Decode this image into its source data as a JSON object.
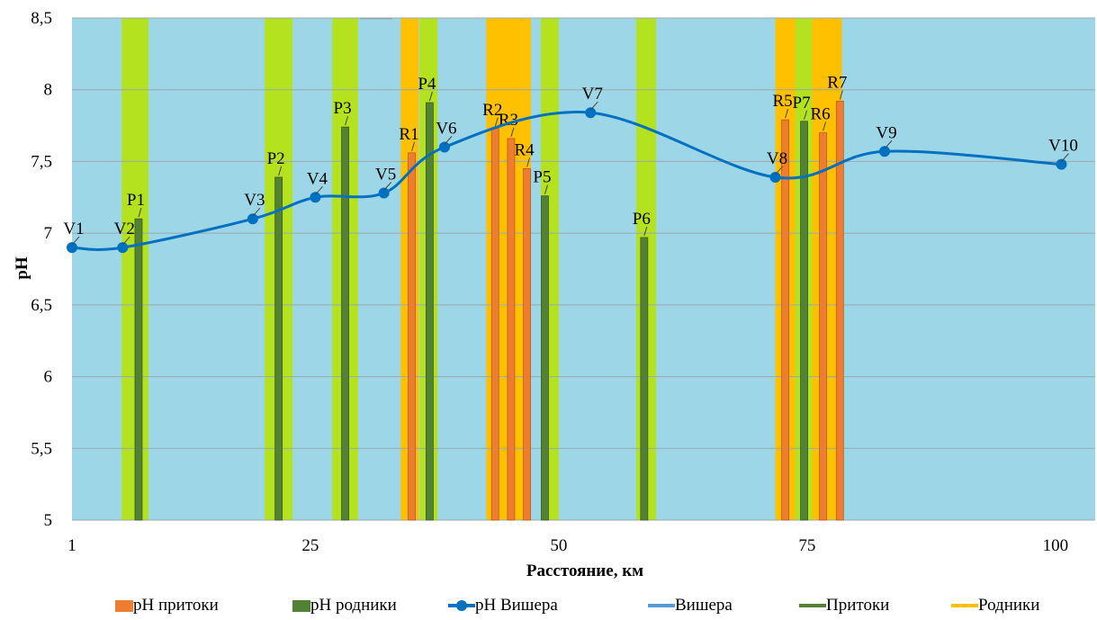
{
  "chart_data": {
    "type": "bar",
    "xlabel": "Расстояние, км",
    "ylabel": "pH",
    "ylim": [
      5,
      8.5
    ],
    "xlim": [
      1,
      104
    ],
    "x_ticks": [
      "1",
      "25",
      "50",
      "75",
      "100"
    ],
    "y_ticks": [
      "5",
      "5,5",
      "6",
      "6,5",
      "7",
      "7,5",
      "8",
      "8,5"
    ],
    "grid": true,
    "legend_position": "bottom",
    "colors": {
      "background": "#9dd6e6",
      "tributary_band": "#b5e21e",
      "spring_band": "#ffc000",
      "tributary_bar": "#ed7d31",
      "spring_bar": "#548235",
      "vishera_line": "#0070c0",
      "river_legend": "#5b9bd5",
      "tributaries_legend": "#548235",
      "springs_legend": "#ffc000",
      "grid": "#9aa8ad"
    },
    "bands": {
      "tributaries": [
        [
          6,
          8.7
        ],
        [
          20.4,
          23.2
        ],
        [
          27.2,
          29.8
        ],
        [
          36,
          37.8
        ],
        [
          48.2,
          50
        ],
        [
          57.8,
          59.8
        ],
        [
          73.8,
          75.5
        ]
      ],
      "springs": [
        [
          34.1,
          35.9
        ],
        [
          42.7,
          47.2
        ],
        [
          71.8,
          73.8
        ],
        [
          75.5,
          78.5
        ]
      ],
      "river_marker": [
        [
          30,
          33.2
        ]
      ]
    },
    "series": [
      {
        "name": "pH притоки",
        "type": "bar",
        "points": [
          {
            "label": "R1",
            "x": 35.2,
            "y": 7.56
          },
          {
            "label": "R2",
            "x": 43.6,
            "y": 7.73
          },
          {
            "label": "R3",
            "x": 45.2,
            "y": 7.66
          },
          {
            "label": "R4",
            "x": 46.8,
            "y": 7.45
          },
          {
            "label": "R5",
            "x": 72.8,
            "y": 7.79
          },
          {
            "label": "R6",
            "x": 76.6,
            "y": 7.7
          },
          {
            "label": "R7",
            "x": 78.3,
            "y": 7.92
          }
        ]
      },
      {
        "name": "pH родники",
        "type": "bar",
        "points": [
          {
            "label": "P1",
            "x": 7.7,
            "y": 7.1
          },
          {
            "label": "P2",
            "x": 21.8,
            "y": 7.39
          },
          {
            "label": "P3",
            "x": 28.5,
            "y": 7.74
          },
          {
            "label": "P4",
            "x": 37.0,
            "y": 7.91
          },
          {
            "label": "P5",
            "x": 48.6,
            "y": 7.26
          },
          {
            "label": "P6",
            "x": 58.6,
            "y": 6.97
          },
          {
            "label": "P7",
            "x": 74.7,
            "y": 7.78
          }
        ]
      },
      {
        "name": "pH Вишера",
        "type": "line",
        "points": [
          {
            "label": "V1",
            "x": 1,
            "y": 6.9
          },
          {
            "label": "V2",
            "x": 6.1,
            "y": 6.9
          },
          {
            "label": "V3",
            "x": 19.2,
            "y": 7.1
          },
          {
            "label": "V4",
            "x": 25.5,
            "y": 7.25
          },
          {
            "label": "V5",
            "x": 32.4,
            "y": 7.28
          },
          {
            "label": "V6",
            "x": 38.5,
            "y": 7.6
          },
          {
            "label": "V7",
            "x": 53.2,
            "y": 7.84
          },
          {
            "label": "V8",
            "x": 71.8,
            "y": 7.39
          },
          {
            "label": "V9",
            "x": 82.8,
            "y": 7.57
          },
          {
            "label": "V10",
            "x": 100.6,
            "y": 7.48
          }
        ]
      }
    ],
    "legend": [
      {
        "label": "pH притоки",
        "kind": "bar",
        "color": "#ed7d31"
      },
      {
        "label": "pH родники",
        "kind": "bar",
        "color": "#548235"
      },
      {
        "label": "pH Вишера",
        "kind": "line-marker",
        "color": "#0070c0"
      },
      {
        "label": "Вишера",
        "kind": "line",
        "color": "#5b9bd5"
      },
      {
        "label": "Притоки",
        "kind": "line",
        "color": "#548235"
      },
      {
        "label": "Родники",
        "kind": "line",
        "color": "#ffc000"
      }
    ]
  }
}
